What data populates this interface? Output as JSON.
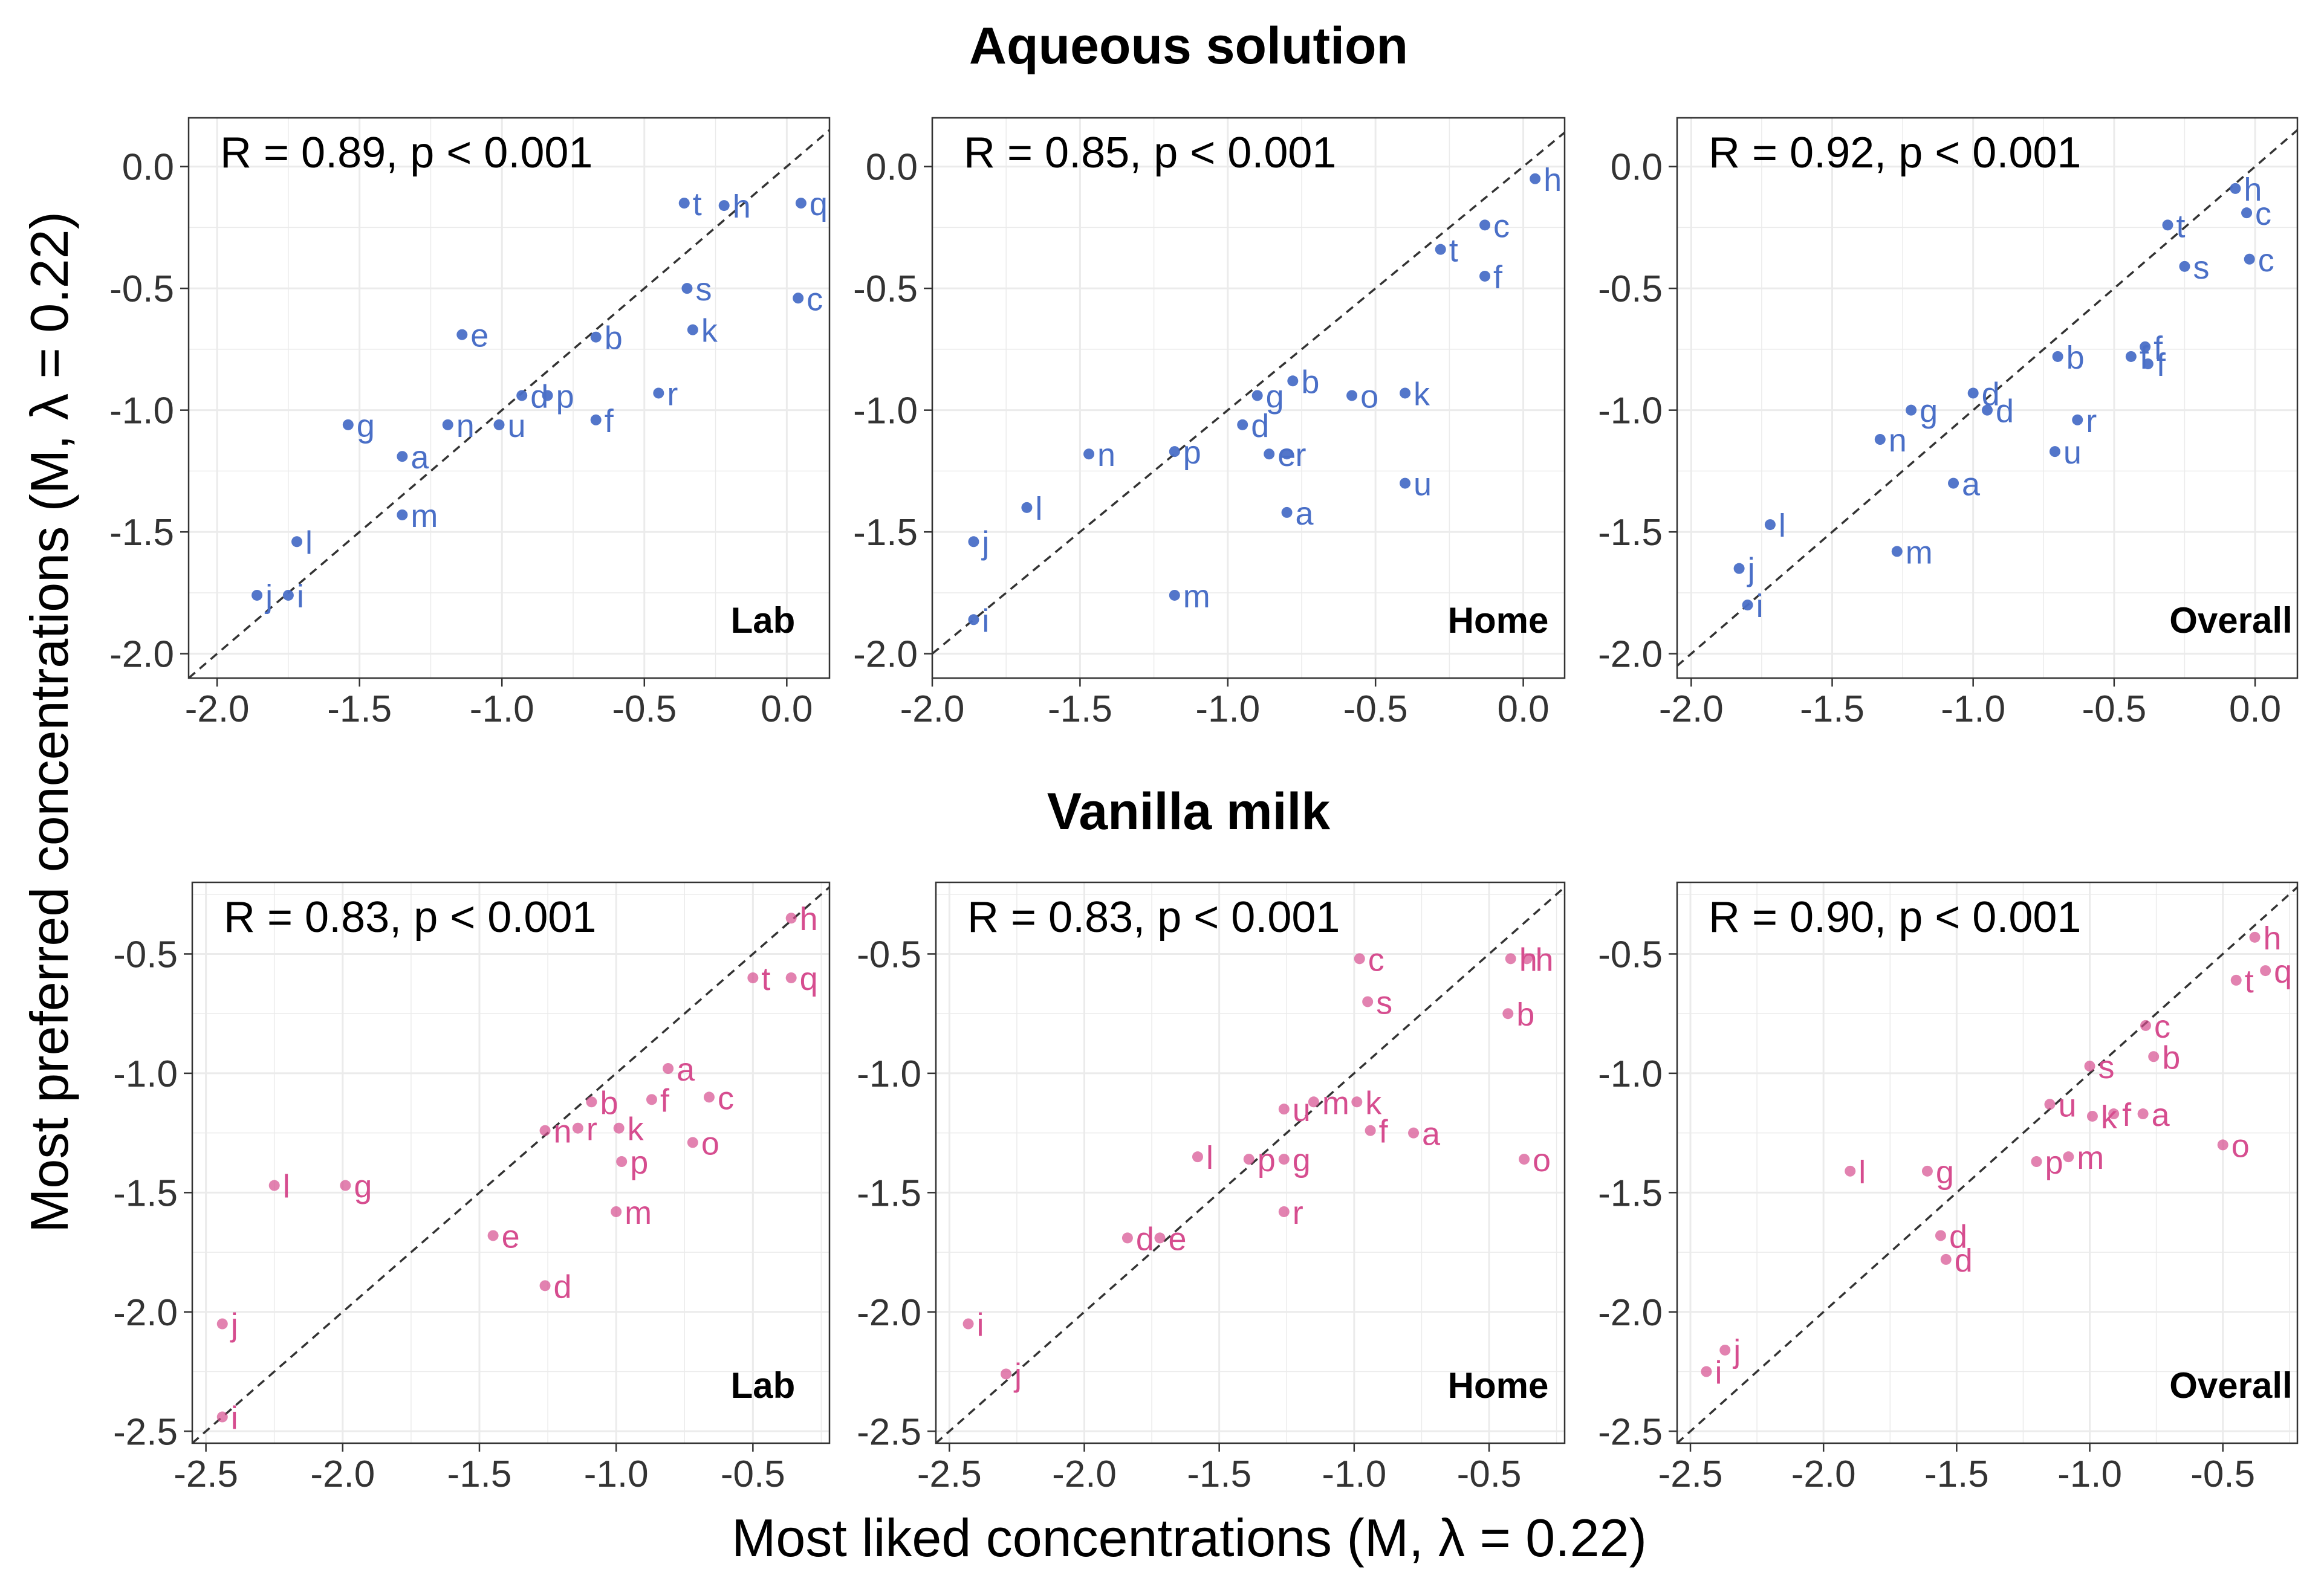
{
  "figure": {
    "y_axis_title": "Most preferred concentrations (M, λ = 0.22)",
    "x_axis_title": "Most liked concentrations (M, λ = 0.22)"
  },
  "colors": {
    "aqueous": "#4a6fc7",
    "milk": "#d64d8f",
    "grid": "#ebebeb",
    "diag": "#333333"
  },
  "chart_data": [
    {
      "type": "scatter",
      "section": "Aqueous solution",
      "panel_label": "Lab",
      "stat": "R = 0.89, p < 0.001",
      "xlim": [
        -2.1,
        0.15
      ],
      "ylim": [
        -2.1,
        0.2
      ],
      "xticks": [
        "-2.0",
        "-1.5",
        "-1.0",
        "-0.5",
        "0.0"
      ],
      "yticks": [
        "0.0",
        "-0.5",
        "-1.0",
        "-1.5",
        "-2.0"
      ],
      "points": [
        {
          "label": "t",
          "x": -0.36,
          "y": -0.15
        },
        {
          "label": "h",
          "x": -0.22,
          "y": -0.16
        },
        {
          "label": "q",
          "x": 0.05,
          "y": -0.15
        },
        {
          "label": "s",
          "x": -0.35,
          "y": -0.5
        },
        {
          "label": "c",
          "x": 0.04,
          "y": -0.54
        },
        {
          "label": "k",
          "x": -0.33,
          "y": -0.67
        },
        {
          "label": "b",
          "x": -0.67,
          "y": -0.7
        },
        {
          "label": "e",
          "x": -1.14,
          "y": -0.69
        },
        {
          "label": "d",
          "x": -0.93,
          "y": -0.94
        },
        {
          "label": "p",
          "x": -0.84,
          "y": -0.94
        },
        {
          "label": "r",
          "x": -0.45,
          "y": -0.93
        },
        {
          "label": "f",
          "x": -0.67,
          "y": -1.04
        },
        {
          "label": "g",
          "x": -1.54,
          "y": -1.06
        },
        {
          "label": "n",
          "x": -1.19,
          "y": -1.06
        },
        {
          "label": "u",
          "x": -1.01,
          "y": -1.06
        },
        {
          "label": "a",
          "x": -1.35,
          "y": -1.19
        },
        {
          "label": "m",
          "x": -1.35,
          "y": -1.43
        },
        {
          "label": "l",
          "x": -1.72,
          "y": -1.54
        },
        {
          "label": "j",
          "x": -1.86,
          "y": -1.76
        },
        {
          "label": "i",
          "x": -1.75,
          "y": -1.76
        }
      ]
    },
    {
      "type": "scatter",
      "section": "Aqueous solution",
      "panel_label": "Home",
      "stat": "R = 0.85, p < 0.001",
      "xlim": [
        -2.0,
        0.14
      ],
      "ylim": [
        -2.1,
        0.2
      ],
      "xticks": [
        "-2.0",
        "-1.5",
        "-1.0",
        "-0.5",
        "0.0"
      ],
      "yticks": [
        "0.0",
        "-0.5",
        "-1.0",
        "-1.5",
        "-2.0"
      ],
      "points": [
        {
          "label": "h",
          "x": 0.04,
          "y": -0.05
        },
        {
          "label": "c",
          "x": -0.13,
          "y": -0.24
        },
        {
          "label": "t",
          "x": -0.28,
          "y": -0.34
        },
        {
          "label": "f",
          "x": -0.13,
          "y": -0.45
        },
        {
          "label": "b",
          "x": -0.78,
          "y": -0.88
        },
        {
          "label": "g",
          "x": -0.9,
          "y": -0.94
        },
        {
          "label": "o",
          "x": -0.58,
          "y": -0.94
        },
        {
          "label": "k",
          "x": -0.4,
          "y": -0.93
        },
        {
          "label": "d",
          "x": -0.95,
          "y": -1.06
        },
        {
          "label": "n",
          "x": -1.47,
          "y": -1.18
        },
        {
          "label": "p",
          "x": -1.18,
          "y": -1.17
        },
        {
          "label": "e",
          "x": -0.86,
          "y": -1.18
        },
        {
          "label": "r",
          "x": -0.8,
          "y": -1.18
        },
        {
          "label": "u",
          "x": -0.4,
          "y": -1.3
        },
        {
          "label": "l",
          "x": -1.68,
          "y": -1.4
        },
        {
          "label": "a",
          "x": -0.8,
          "y": -1.42
        },
        {
          "label": "j",
          "x": -1.86,
          "y": -1.54
        },
        {
          "label": "m",
          "x": -1.18,
          "y": -1.76
        },
        {
          "label": "i",
          "x": -1.86,
          "y": -1.86
        }
      ]
    },
    {
      "type": "scatter",
      "section": "Aqueous solution",
      "panel_label": "Overall",
      "stat": "R = 0.92, p < 0.001",
      "xlim": [
        -2.05,
        0.15
      ],
      "ylim": [
        -2.1,
        0.2
      ],
      "xticks": [
        "-2.0",
        "-1.5",
        "-1.0",
        "-0.5",
        "0.0"
      ],
      "yticks": [
        "0.0",
        "-0.5",
        "-1.0",
        "-1.5",
        "-2.0"
      ],
      "points": [
        {
          "label": "h",
          "x": -0.07,
          "y": -0.09
        },
        {
          "label": "c",
          "x": -0.03,
          "y": -0.19
        },
        {
          "label": "t",
          "x": -0.31,
          "y": -0.24
        },
        {
          "label": "s",
          "x": -0.25,
          "y": -0.41
        },
        {
          "label": "c",
          "x": -0.02,
          "y": -0.38
        },
        {
          "label": "b",
          "x": -0.7,
          "y": -0.78
        },
        {
          "label": "f",
          "x": -0.39,
          "y": -0.74
        },
        {
          "label": "f",
          "x": -0.38,
          "y": -0.81
        },
        {
          "label": "f",
          "x": -0.44,
          "y": -0.78
        },
        {
          "label": "g",
          "x": -1.22,
          "y": -1.0
        },
        {
          "label": "d",
          "x": -1.0,
          "y": -0.93
        },
        {
          "label": "d",
          "x": -0.95,
          "y": -1.0
        },
        {
          "label": "r",
          "x": -0.63,
          "y": -1.04
        },
        {
          "label": "n",
          "x": -1.33,
          "y": -1.12
        },
        {
          "label": "u",
          "x": -0.71,
          "y": -1.17
        },
        {
          "label": "a",
          "x": -1.07,
          "y": -1.3
        },
        {
          "label": "l",
          "x": -1.72,
          "y": -1.47
        },
        {
          "label": "m",
          "x": -1.27,
          "y": -1.58
        },
        {
          "label": "j",
          "x": -1.83,
          "y": -1.65
        },
        {
          "label": "i",
          "x": -1.8,
          "y": -1.8
        }
      ]
    },
    {
      "type": "scatter",
      "section": "Vanilla milk",
      "panel_label": "Lab",
      "stat": "R = 0.83, p < 0.001",
      "xlim": [
        -2.55,
        -0.22
      ],
      "ylim": [
        -2.55,
        -0.2
      ],
      "xticks": [
        "-2.5",
        "-2.0",
        "-1.5",
        "-1.0",
        "-0.5"
      ],
      "yticks": [
        "-0.5",
        "-1.0",
        "-1.5",
        "-2.0",
        "-2.5"
      ],
      "points": [
        {
          "label": "h",
          "x": -0.36,
          "y": -0.35
        },
        {
          "label": "t",
          "x": -0.5,
          "y": -0.6
        },
        {
          "label": "q",
          "x": -0.36,
          "y": -0.6
        },
        {
          "label": "a",
          "x": -0.81,
          "y": -0.98
        },
        {
          "label": "c",
          "x": -0.66,
          "y": -1.1
        },
        {
          "label": "b",
          "x": -1.09,
          "y": -1.12
        },
        {
          "label": "f",
          "x": -0.87,
          "y": -1.11
        },
        {
          "label": "n",
          "x": -1.26,
          "y": -1.24
        },
        {
          "label": "r",
          "x": -1.14,
          "y": -1.23
        },
        {
          "label": "k",
          "x": -0.99,
          "y": -1.23
        },
        {
          "label": "o",
          "x": -0.72,
          "y": -1.29
        },
        {
          "label": "p",
          "x": -0.98,
          "y": -1.37
        },
        {
          "label": "l",
          "x": -2.25,
          "y": -1.47
        },
        {
          "label": "g",
          "x": -1.99,
          "y": -1.47
        },
        {
          "label": "m",
          "x": -1.0,
          "y": -1.58
        },
        {
          "label": "e",
          "x": -1.45,
          "y": -1.68
        },
        {
          "label": "d",
          "x": -1.26,
          "y": -1.89
        },
        {
          "label": "j",
          "x": -2.44,
          "y": -2.05
        },
        {
          "label": "i",
          "x": -2.44,
          "y": -2.44
        }
      ]
    },
    {
      "type": "scatter",
      "section": "Vanilla milk",
      "panel_label": "Home",
      "stat": "R = 0.83, p < 0.001",
      "xlim": [
        -2.55,
        -0.22
      ],
      "ylim": [
        -2.55,
        -0.2
      ],
      "xticks": [
        "-2.5",
        "-2.0",
        "-1.5",
        "-1.0",
        "-0.5"
      ],
      "yticks": [
        "-0.5",
        "-1.0",
        "-1.5",
        "-2.0",
        "-2.5"
      ],
      "points": [
        {
          "label": "c",
          "x": -0.98,
          "y": -0.52
        },
        {
          "label": "h",
          "x": -0.42,
          "y": -0.52
        },
        {
          "label": "h",
          "x": -0.36,
          "y": -0.52
        },
        {
          "label": "s",
          "x": -0.95,
          "y": -0.7
        },
        {
          "label": "b",
          "x": -0.43,
          "y": -0.75
        },
        {
          "label": "u",
          "x": -1.26,
          "y": -1.15
        },
        {
          "label": "m",
          "x": -1.15,
          "y": -1.12
        },
        {
          "label": "k",
          "x": -0.99,
          "y": -1.12
        },
        {
          "label": "f",
          "x": -0.94,
          "y": -1.24
        },
        {
          "label": "a",
          "x": -0.78,
          "y": -1.25
        },
        {
          "label": "l",
          "x": -1.58,
          "y": -1.35
        },
        {
          "label": "p",
          "x": -1.39,
          "y": -1.36
        },
        {
          "label": "g",
          "x": -1.26,
          "y": -1.36
        },
        {
          "label": "o",
          "x": -0.37,
          "y": -1.36
        },
        {
          "label": "r",
          "x": -1.26,
          "y": -1.58
        },
        {
          "label": "d",
          "x": -1.84,
          "y": -1.69
        },
        {
          "label": "e",
          "x": -1.72,
          "y": -1.69
        },
        {
          "label": "i",
          "x": -2.43,
          "y": -2.05
        },
        {
          "label": "j",
          "x": -2.29,
          "y": -2.26
        }
      ]
    },
    {
      "type": "scatter",
      "section": "Vanilla milk",
      "panel_label": "Overall",
      "stat": "R = 0.90, p < 0.001",
      "xlim": [
        -2.55,
        -0.22
      ],
      "ylim": [
        -2.55,
        -0.2
      ],
      "xticks": [
        "-2.5",
        "-2.0",
        "-1.5",
        "-1.0",
        "-0.5"
      ],
      "yticks": [
        "-0.5",
        "-1.0",
        "-1.5",
        "-2.0",
        "-2.5"
      ],
      "points": [
        {
          "label": "h",
          "x": -0.38,
          "y": -0.43
        },
        {
          "label": "t",
          "x": -0.45,
          "y": -0.61
        },
        {
          "label": "q",
          "x": -0.34,
          "y": -0.57
        },
        {
          "label": "c",
          "x": -0.79,
          "y": -0.8
        },
        {
          "label": "b",
          "x": -0.76,
          "y": -0.93
        },
        {
          "label": "s",
          "x": -1.0,
          "y": -0.97
        },
        {
          "label": "u",
          "x": -1.15,
          "y": -1.13
        },
        {
          "label": "k",
          "x": -0.99,
          "y": -1.18
        },
        {
          "label": "f",
          "x": -0.91,
          "y": -1.17
        },
        {
          "label": "a",
          "x": -0.8,
          "y": -1.17
        },
        {
          "label": "o",
          "x": -0.5,
          "y": -1.3
        },
        {
          "label": "p",
          "x": -1.2,
          "y": -1.37
        },
        {
          "label": "m",
          "x": -1.08,
          "y": -1.35
        },
        {
          "label": "l",
          "x": -1.9,
          "y": -1.41
        },
        {
          "label": "g",
          "x": -1.61,
          "y": -1.41
        },
        {
          "label": "d",
          "x": -1.56,
          "y": -1.68
        },
        {
          "label": "d",
          "x": -1.54,
          "y": -1.78
        },
        {
          "label": "j",
          "x": -2.37,
          "y": -2.16
        },
        {
          "label": "i",
          "x": -2.44,
          "y": -2.25
        }
      ]
    }
  ]
}
